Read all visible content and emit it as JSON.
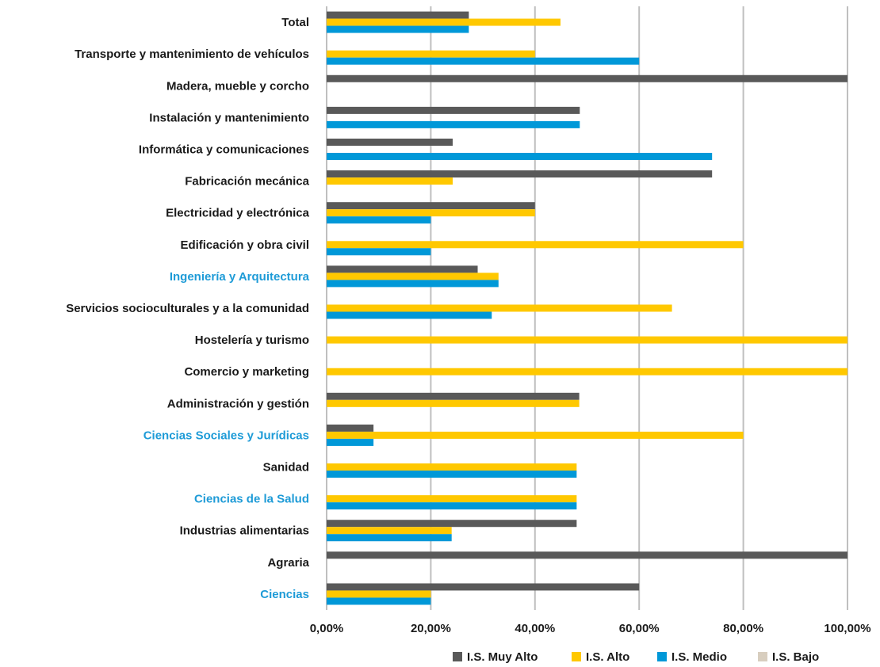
{
  "chart_data": {
    "type": "bar",
    "orientation": "horizontal",
    "categories": [
      {
        "label": "Total",
        "highlight": false
      },
      {
        "label": "Transporte y mantenimiento de vehículos",
        "highlight": false
      },
      {
        "label": "Madera, mueble y corcho",
        "highlight": false
      },
      {
        "label": "Instalación y mantenimiento",
        "highlight": false
      },
      {
        "label": "Informática y comunicaciones",
        "highlight": false
      },
      {
        "label": "Fabricación mecánica",
        "highlight": false
      },
      {
        "label": "Electricidad y electrónica",
        "highlight": false
      },
      {
        "label": "Edificación y obra civil",
        "highlight": false
      },
      {
        "label": "Ingeniería y Arquitectura",
        "highlight": true
      },
      {
        "label": "Servicios socioculturales y a la comunidad",
        "highlight": false
      },
      {
        "label": "Hostelería y turismo",
        "highlight": false
      },
      {
        "label": "Comercio y marketing",
        "highlight": false
      },
      {
        "label": "Administración y gestión",
        "highlight": false
      },
      {
        "label": "Ciencias Sociales y Jurídicas",
        "highlight": true
      },
      {
        "label": "Sanidad",
        "highlight": false
      },
      {
        "label": "Ciencias de la Salud",
        "highlight": true
      },
      {
        "label": "Industrias alimentarias",
        "highlight": false
      },
      {
        "label": "Agraria",
        "highlight": false
      },
      {
        "label": "Ciencias",
        "highlight": true
      }
    ],
    "series": [
      {
        "name": "I.S. Muy Alto",
        "color": "#595959",
        "values": [
          27.3,
          0,
          100,
          48.6,
          24.2,
          74.0,
          40.0,
          0,
          29.0,
          0,
          0,
          0,
          48.5,
          9.0,
          0,
          0,
          48.0,
          100,
          60.0
        ]
      },
      {
        "name": "I.S. Alto",
        "color": "#FFC800",
        "values": [
          44.9,
          40.0,
          0,
          0,
          0,
          24.2,
          40.0,
          80.0,
          33.0,
          66.3,
          100,
          100,
          48.5,
          80.0,
          48.0,
          48.0,
          24.0,
          0,
          20.0
        ]
      },
      {
        "name": "I.S. Medio",
        "color": "#0098D8",
        "values": [
          27.3,
          60.0,
          0,
          48.6,
          74.0,
          0,
          20.0,
          20.0,
          33.0,
          31.7,
          0,
          0,
          0,
          9.0,
          48.0,
          48.0,
          24.0,
          0,
          20.0
        ]
      },
      {
        "name": "I.S. Bajo",
        "color": "#D8CEBF",
        "values": [
          0,
          0,
          0,
          0,
          0,
          0,
          0,
          0,
          0,
          0,
          0,
          0,
          0,
          0,
          0,
          0,
          0,
          0,
          0
        ]
      }
    ],
    "x_ticks": [
      "0,00%",
      "20,00%",
      "40,00%",
      "60,00%",
      "80,00%",
      "100,00%"
    ],
    "xlim": [
      0,
      100
    ],
    "grid": true,
    "legend_position": "bottom",
    "label_color": "#1a1a1a",
    "highlight_color": "#1E9BD7",
    "grid_color": "#BFBFBF"
  }
}
